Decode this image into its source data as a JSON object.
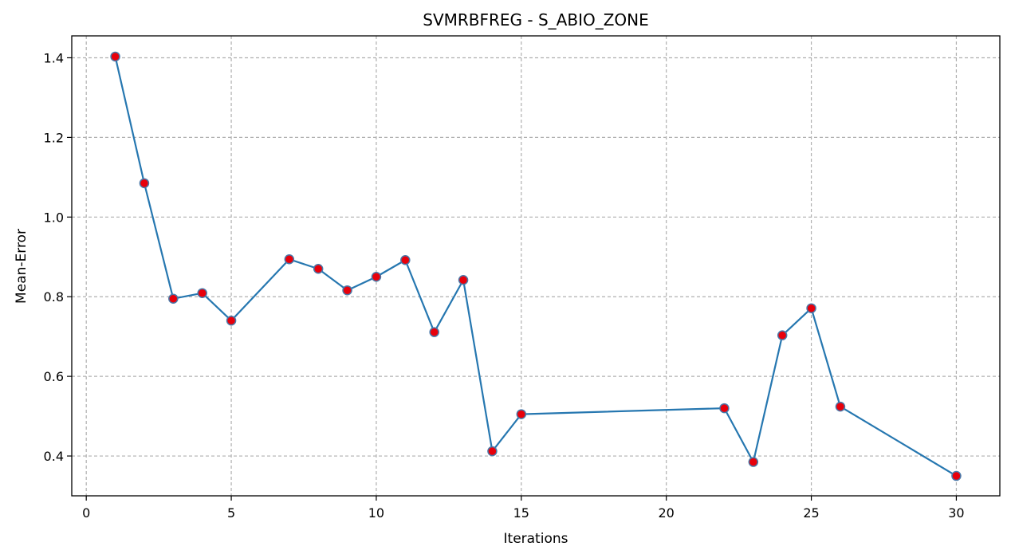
{
  "chart_data": {
    "type": "line",
    "title": "SVMRBFREG - S_ABIO_ZONE",
    "xlabel": "Iterations",
    "ylabel": "Mean-Error",
    "xlim": [
      -0.5,
      31.5
    ],
    "ylim": [
      0.3,
      1.455
    ],
    "xticks": [
      0,
      5,
      10,
      15,
      20,
      25,
      30
    ],
    "yticks": [
      0.4,
      0.6,
      0.8,
      1.0,
      1.2,
      1.4
    ],
    "ytick_labels": [
      "0.4",
      "0.6",
      "0.8",
      "1.0",
      "1.2",
      "1.4"
    ],
    "grid": true,
    "line_color": "#2677b0",
    "marker_fill": "#e8000b",
    "marker_edge": "#4a78a8",
    "series": [
      {
        "x": [
          1,
          2,
          3,
          4,
          5,
          7,
          8,
          9,
          10,
          11,
          12,
          13,
          14,
          15,
          22,
          23,
          24,
          25,
          26,
          30
        ],
        "values": [
          1.403,
          1.085,
          0.795,
          0.809,
          0.74,
          0.894,
          0.87,
          0.816,
          0.85,
          0.892,
          0.711,
          0.842,
          0.412,
          0.505,
          0.52,
          0.385,
          0.703,
          0.771,
          0.524,
          0.35
        ]
      }
    ]
  }
}
